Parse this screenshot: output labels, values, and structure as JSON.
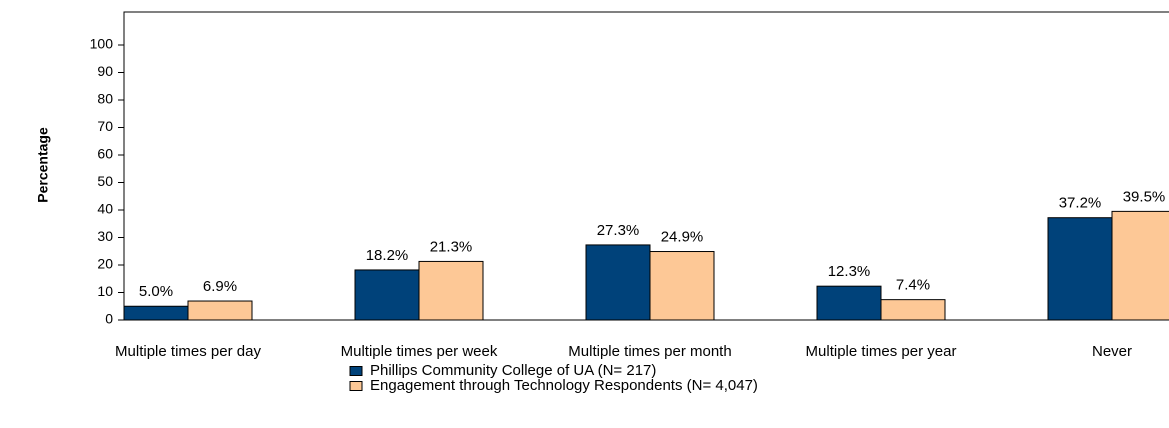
{
  "chart_data": {
    "type": "bar",
    "y_label": "Percentage",
    "categories": [
      "Multiple times per day",
      "Multiple times per week",
      "Multiple times per month",
      "Multiple times per year",
      "Never"
    ],
    "series": [
      {
        "name": "Phillips Community College of UA (N= 217)",
        "color": "#00427a",
        "values": [
          5.0,
          18.2,
          27.3,
          12.3,
          37.2
        ],
        "value_labels": [
          "5.0%",
          "18.2%",
          "27.3%",
          "12.3%",
          "37.2%"
        ]
      },
      {
        "name": "Engagement through Technology Respondents (N= 4,047)",
        "color": "#fdc896",
        "values": [
          6.9,
          21.3,
          24.9,
          7.4,
          39.5
        ],
        "value_labels": [
          "6.9%",
          "21.3%",
          "24.9%",
          "7.4%",
          "39.5%"
        ]
      }
    ],
    "ylim": [
      0,
      112
    ],
    "yticks": [
      0,
      10,
      20,
      30,
      40,
      50,
      60,
      70,
      80,
      90,
      100
    ],
    "grid": false
  }
}
